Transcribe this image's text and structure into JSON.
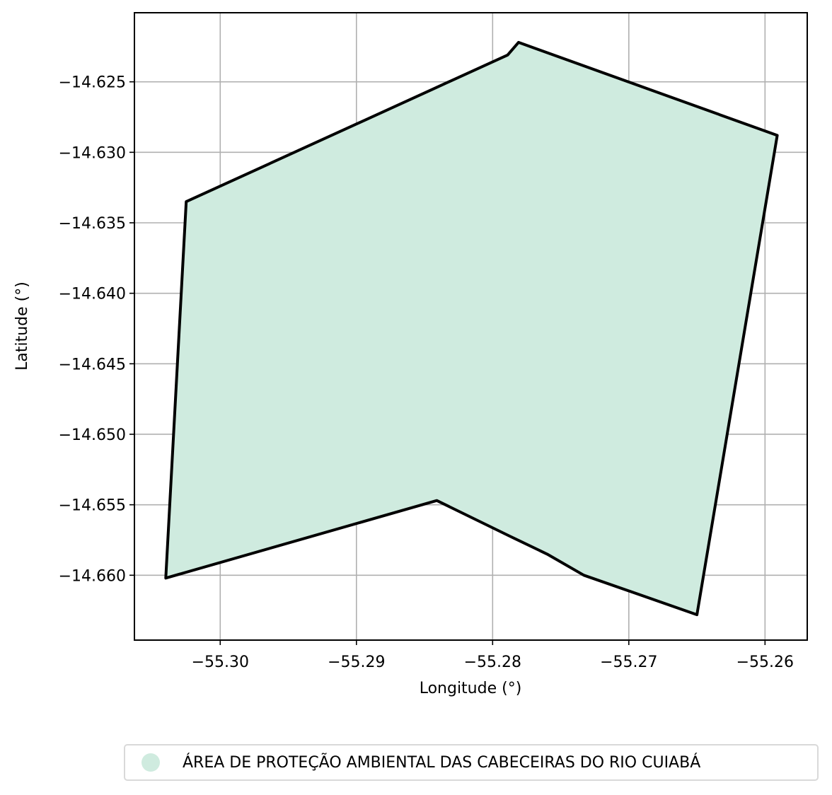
{
  "chart_data": {
    "type": "map",
    "title": "",
    "xlabel": "Longitude (°)",
    "ylabel": "Latitude (°)",
    "xlim": [
      -55.3063,
      -55.2569
    ],
    "ylim": [
      -14.6646,
      -14.6201
    ],
    "grid": true,
    "x_ticks": [
      {
        "value": -55.3,
        "label": "−55.30"
      },
      {
        "value": -55.29,
        "label": "−55.29"
      },
      {
        "value": -55.28,
        "label": "−55.28"
      },
      {
        "value": -55.27,
        "label": "−55.27"
      },
      {
        "value": -55.26,
        "label": "−55.26"
      }
    ],
    "y_ticks": [
      {
        "value": -14.625,
        "label": "−14.625"
      },
      {
        "value": -14.63,
        "label": "−14.630"
      },
      {
        "value": -14.635,
        "label": "−14.635"
      },
      {
        "value": -14.64,
        "label": "−14.640"
      },
      {
        "value": -14.645,
        "label": "−14.645"
      },
      {
        "value": -14.65,
        "label": "−14.650"
      },
      {
        "value": -14.655,
        "label": "−14.655"
      },
      {
        "value": -14.66,
        "label": "−14.660"
      }
    ],
    "polygon": {
      "name": "ÁREA DE PROTEÇÃO AMBIENTAL DAS CABECEIRAS DO RIO CUIABÁ",
      "fill": "#cfebdf",
      "stroke": "#000000",
      "coordinates": [
        [
          -55.304,
          -14.6602
        ],
        [
          -55.3025,
          -14.6335
        ],
        [
          -55.2789,
          -14.6231
        ],
        [
          -55.2781,
          -14.6222
        ],
        [
          -55.2591,
          -14.6288
        ],
        [
          -55.265,
          -14.6628
        ],
        [
          -55.2733,
          -14.66
        ],
        [
          -55.276,
          -14.6585
        ],
        [
          -55.2788,
          -14.6572
        ],
        [
          -55.2841,
          -14.6547
        ],
        [
          -55.304,
          -14.6602
        ]
      ]
    },
    "legend": {
      "placement": "bottom-center",
      "entries": [
        {
          "label": "ÁREA DE PROTEÇÃO AMBIENTAL DAS CABECEIRAS DO RIO CUIABÁ",
          "color": "#cfebdf"
        }
      ]
    }
  }
}
